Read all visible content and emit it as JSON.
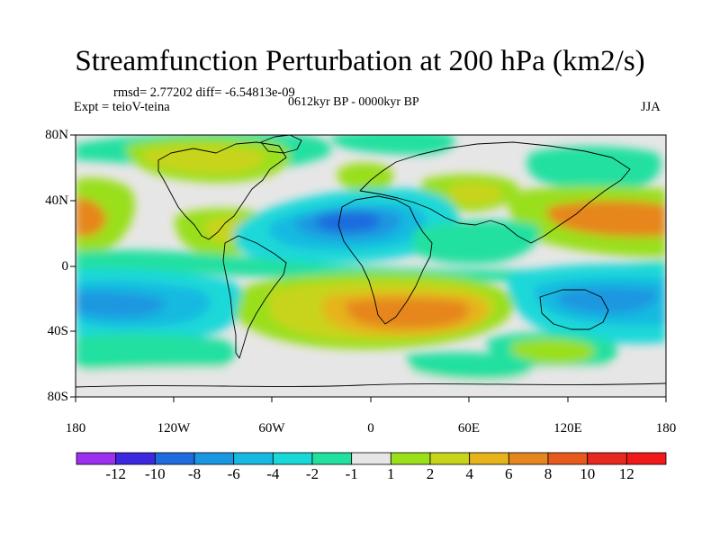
{
  "title": "Streamfunction Perturbation at 200 hPa (km2/s)",
  "stats": {
    "rmsd_label": "rmsd= 2.77202 diff= -6.54813e-09"
  },
  "period": "0612kyr BP - 0000kyr BP",
  "experiment": "Expt = teioV-teina",
  "season": "JJA",
  "axes": {
    "lat_ticks": [
      "80N",
      "40N",
      "0",
      "40S",
      "80S"
    ],
    "lon_ticks": [
      "180",
      "120W",
      "60W",
      "0",
      "60E",
      "120E",
      "180"
    ]
  },
  "colorbar": {
    "labels": [
      "-12",
      "-10",
      "-8",
      "-6",
      "-4",
      "-2",
      "-1",
      "1",
      "2",
      "4",
      "6",
      "8",
      "10",
      "12"
    ],
    "colors": [
      "#9d2ff0",
      "#3c28df",
      "#1f6bde",
      "#1a97e0",
      "#17b9e0",
      "#1ad8d8",
      "#22e0a0",
      "#e6e6e6",
      "#9adf1a",
      "#c8d41a",
      "#e6b41a",
      "#e6861e",
      "#e65a1e",
      "#e6281e",
      "#f01818"
    ]
  },
  "map_colors": {
    "land_outline": "#000000",
    "background": "#e6e6e6"
  }
}
